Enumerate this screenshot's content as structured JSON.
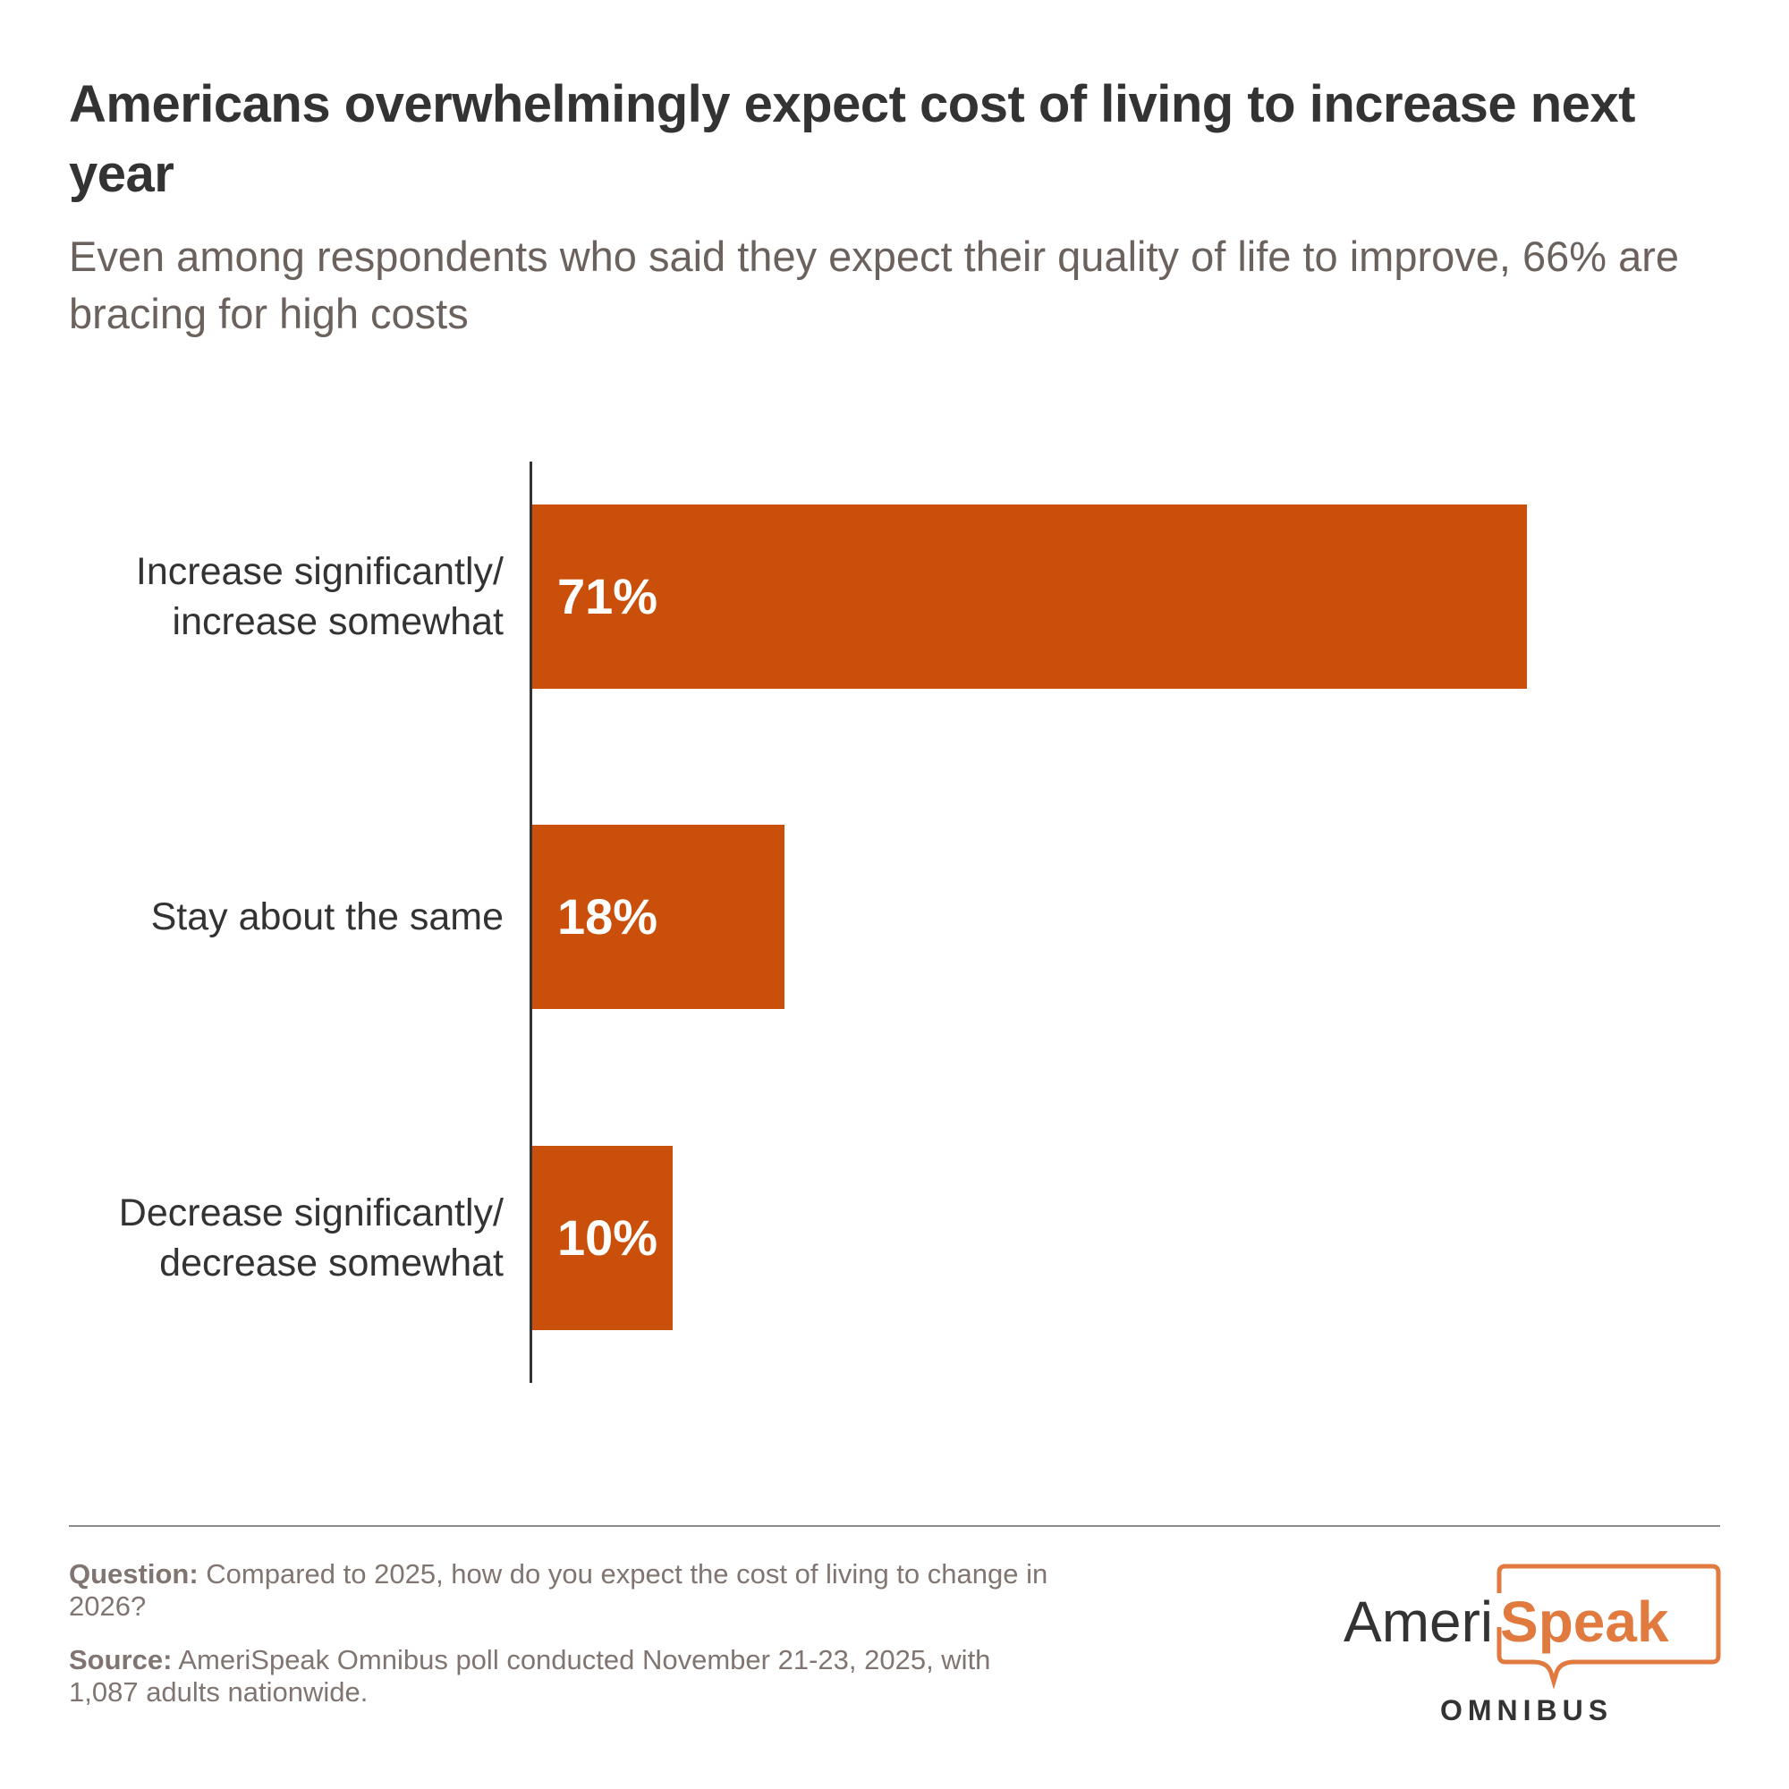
{
  "title": "Americans overwhelmingly expect cost of living to increase next year",
  "subtitle": "Even among respondents who said they expect their quality of life to improve, 66% are bracing for high costs",
  "chart_data": {
    "type": "bar",
    "orientation": "horizontal",
    "categories": [
      "Increase significantly/\nincrease somewhat",
      "Stay about the same",
      "Decrease significantly/\ndecrease somewhat"
    ],
    "values": [
      71,
      18,
      10
    ],
    "labels": [
      "71%",
      "18%",
      "10%"
    ],
    "xlim": [
      0,
      71
    ],
    "bar_color": "#c94f0a",
    "grid": false
  },
  "footer": {
    "question_label": "Question:",
    "question_text": " Compared to 2025, how do you expect the cost of living to change in 2026?",
    "source_label": "Source:",
    "source_text": " AmeriSpeak Omnibus poll conducted November 21-23, 2025, with 1,087 adults nationwide."
  },
  "logo": {
    "part1": "Ameri",
    "part2": "Speak",
    "sub": "OMNIBUS",
    "accent": "#e07a3f"
  }
}
